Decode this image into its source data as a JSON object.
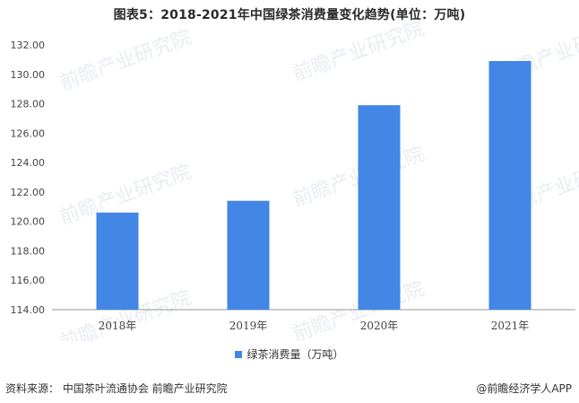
{
  "chart_data": {
    "type": "bar",
    "title": "图表5：2018-2021年中国绿茶消费量变化趋势(单位：万吨)",
    "categories": [
      "2018年",
      "2019年",
      "2020年",
      "2021年"
    ],
    "series": [
      {
        "name": "绿茶消费量（万吨）",
        "values": [
          120.6,
          121.4,
          127.9,
          130.9
        ]
      }
    ],
    "yticks": [
      "114.00",
      "116.00",
      "118.00",
      "120.00",
      "122.00",
      "124.00",
      "126.00",
      "128.00",
      "130.00",
      "132.00"
    ],
    "ylim": [
      114,
      132
    ],
    "grid": false,
    "legend_position": "bottom",
    "bar_color": "#4286e6"
  },
  "footer": {
    "source": "资料来源：  中国茶叶流通协会 前瞻产业研究院",
    "brand": "@前瞻经济学人APP"
  },
  "watermark": "前瞻产业研究院"
}
